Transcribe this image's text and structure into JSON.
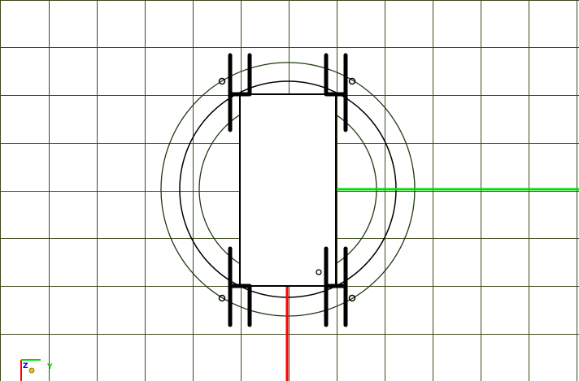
{
  "viewport": {
    "title": "",
    "colors": {
      "background": "#ffffff",
      "grid": "#3b4a1e",
      "outline": "#000000",
      "part_fill": "#ffffff",
      "ring_outer": "#1f3a12",
      "x_axis": "#ff0000",
      "y_axis": "#00e000",
      "z_axis": "#0000ff",
      "origin_marker": "#f2c200"
    }
  },
  "gizmo": {
    "z_label": "Z",
    "y_label": "Y",
    "icon": "axis-triad-icon"
  }
}
